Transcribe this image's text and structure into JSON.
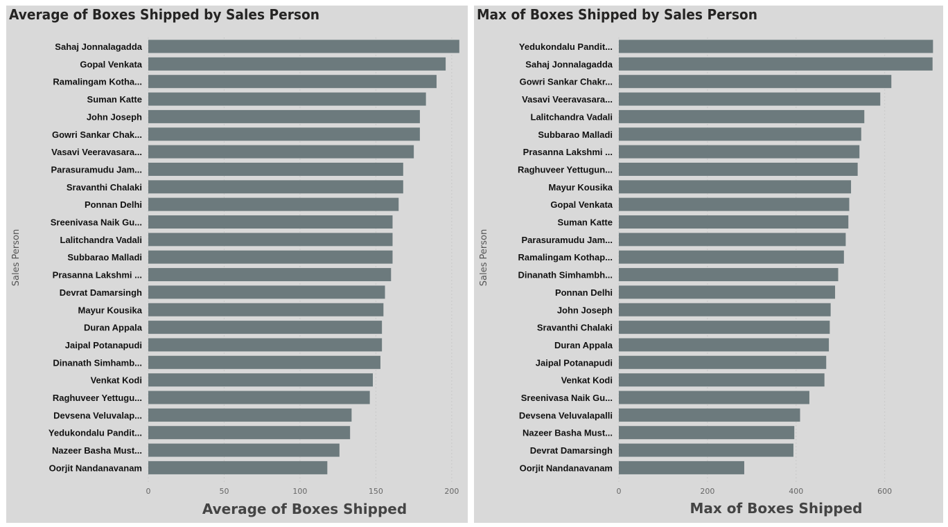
{
  "chart_data": [
    {
      "type": "bar",
      "orientation": "horizontal",
      "title": "Average of Boxes Shipped by Sales Person",
      "xlabel": "Average of Boxes Shipped",
      "ylabel": "Sales Person",
      "xlim": [
        0,
        206
      ],
      "xticks": [
        0,
        50,
        100,
        150,
        200
      ],
      "grid": true,
      "bar_color": "#6c7a7d",
      "categories": [
        "Sahaj Jonnalagadda",
        "Gopal Venkata",
        "Ramalingam Kotha...",
        "Suman Katte",
        "John Joseph",
        "Gowri Sankar Chak...",
        "Vasavi Veeravasara...",
        "Parasuramudu Jam...",
        "Sravanthi Chalaki",
        "Ponnan Delhi",
        "Sreenivasa Naik Gu...",
        "Lalitchandra Vadali",
        "Subbarao Malladi",
        "Prasanna Lakshmi ...",
        "Devrat Damarsingh",
        "Mayur Kousika",
        "Duran Appala",
        "Jaipal Potanapudi",
        "Dinanath Simhamb...",
        "Venkat Kodi",
        "Raghuveer Yettugu...",
        "Devsena Veluvalap...",
        "Yedukondalu Pandit...",
        "Nazeer Basha Must...",
        "Oorjit Nandanavanam"
      ],
      "values": [
        205,
        196,
        190,
        183,
        179,
        179,
        175,
        168,
        168,
        165,
        161,
        161,
        161,
        160,
        156,
        155,
        154,
        154,
        153,
        148,
        146,
        134,
        133,
        126,
        118
      ]
    },
    {
      "type": "bar",
      "orientation": "horizontal",
      "title": "Max of Boxes Shipped by Sales Person",
      "xlabel": "Max of Boxes Shipped",
      "ylabel": "Sales Person",
      "xlim": [
        0,
        710
      ],
      "xticks": [
        0,
        200,
        400,
        600
      ],
      "grid": true,
      "bar_color": "#6c7a7d",
      "categories": [
        "Yedukondalu Pandit...",
        "Sahaj Jonnalagadda",
        "Gowri Sankar Chakr...",
        "Vasavi Veeravasara...",
        "Lalitchandra Vadali",
        "Subbarao Malladi",
        "Prasanna Lakshmi ...",
        "Raghuveer Yettugun...",
        "Mayur Kousika",
        "Gopal Venkata",
        "Suman Katte",
        "Parasuramudu Jam...",
        "Ramalingam Kothap...",
        "Dinanath Simhambh...",
        "Ponnan Delhi",
        "John Joseph",
        "Sravanthi Chalaki",
        "Duran Appala",
        "Jaipal Potanapudi",
        "Venkat Kodi",
        "Sreenivasa Naik Gu...",
        "Devsena Veluvalapalli",
        "Nazeer Basha Must...",
        "Devrat Damarsingh",
        "Oorjit Nandanavanam"
      ],
      "values": [
        709,
        708,
        615,
        590,
        554,
        547,
        543,
        539,
        524,
        520,
        518,
        512,
        508,
        495,
        488,
        478,
        476,
        474,
        468,
        464,
        430,
        409,
        396,
        394,
        283
      ]
    }
  ]
}
